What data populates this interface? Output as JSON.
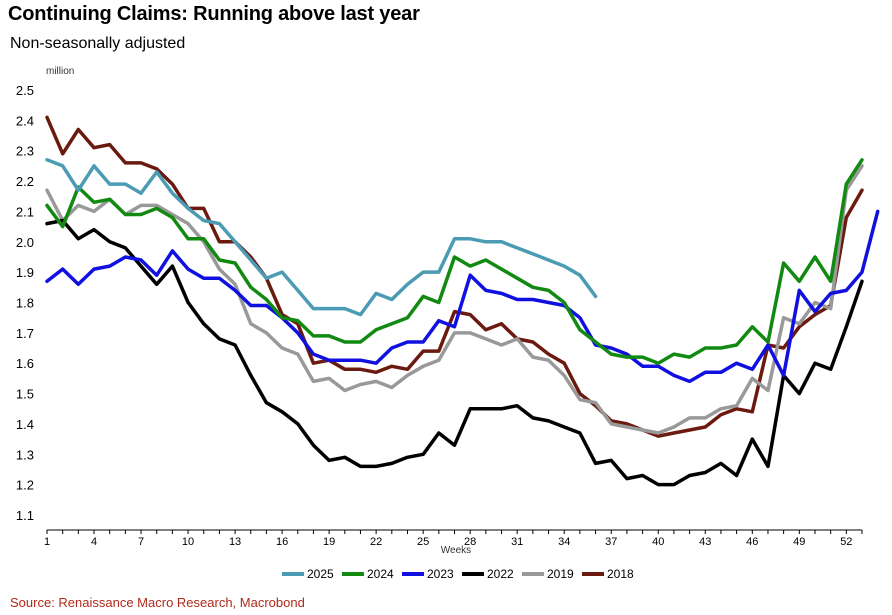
{
  "chart_data": {
    "type": "line",
    "title": "Continuing Claims: Running above last year",
    "subtitle": "Non-seasonally adjusted",
    "ylabel": "million",
    "xlabel": "Weeks",
    "ylim": [
      1.1,
      2.5
    ],
    "yticks": [
      "2.5",
      "2.4",
      "2.3",
      "2.2",
      "2.1",
      "2.0",
      "1.9",
      "1.8",
      "1.7",
      "1.6",
      "1.5",
      "1.4",
      "1.3",
      "1.2",
      "1.1"
    ],
    "ytick_values": [
      2.5,
      2.4,
      2.3,
      2.2,
      2.1,
      2.0,
      1.9,
      1.8,
      1.7,
      1.6,
      1.5,
      1.4,
      1.3,
      1.2,
      1.1
    ],
    "xlim": [
      1,
      53
    ],
    "xticks": [
      "1",
      "4",
      "7",
      "10",
      "13",
      "16",
      "19",
      "22",
      "25",
      "28",
      "31",
      "34",
      "37",
      "40",
      "43",
      "46",
      "49",
      "52"
    ],
    "xtick_values": [
      1,
      4,
      7,
      10,
      13,
      16,
      19,
      22,
      25,
      28,
      31,
      34,
      37,
      40,
      43,
      46,
      49,
      52
    ],
    "grid": false,
    "legend_position": "bottom",
    "source": "Source: Renaissance Macro Research, Macrobond",
    "series": [
      {
        "name": "2025",
        "color": "#4a9bb3",
        "start": 1,
        "values": [
          2.27,
          2.25,
          2.17,
          2.25,
          2.19,
          2.19,
          2.16,
          2.23,
          2.16,
          2.11,
          2.07,
          2.06,
          2.0,
          1.94,
          1.88,
          1.9,
          1.84,
          1.78,
          1.78,
          1.78,
          1.76,
          1.83,
          1.81,
          1.86,
          1.9,
          1.9,
          2.01,
          2.01,
          2.0,
          2.0,
          1.98,
          1.96,
          1.94,
          1.92,
          1.89,
          1.82
        ]
      },
      {
        "name": "2024",
        "color": "#128a12",
        "start": 1,
        "values": [
          2.12,
          2.05,
          2.18,
          2.13,
          2.14,
          2.09,
          2.09,
          2.11,
          2.08,
          2.01,
          2.01,
          1.94,
          1.93,
          1.85,
          1.81,
          1.75,
          1.74,
          1.69,
          1.69,
          1.67,
          1.67,
          1.71,
          1.73,
          1.75,
          1.82,
          1.8,
          1.95,
          1.92,
          1.94,
          1.91,
          1.88,
          1.85,
          1.84,
          1.8,
          1.71,
          1.67,
          1.63,
          1.62,
          1.62,
          1.6,
          1.63,
          1.62,
          1.65,
          1.65,
          1.66,
          1.72,
          1.67,
          1.93,
          1.87,
          1.95,
          1.87,
          2.19,
          2.27
        ]
      },
      {
        "name": "2023",
        "color": "#1010e0",
        "start": 1,
        "values": [
          1.87,
          1.91,
          1.86,
          1.91,
          1.92,
          1.95,
          1.94,
          1.89,
          1.97,
          1.91,
          1.88,
          1.88,
          1.84,
          1.79,
          1.79,
          1.75,
          1.7,
          1.63,
          1.61,
          1.61,
          1.61,
          1.6,
          1.65,
          1.67,
          1.67,
          1.74,
          1.72,
          1.89,
          1.84,
          1.83,
          1.81,
          1.81,
          1.8,
          1.79,
          1.75,
          1.66,
          1.65,
          1.63,
          1.59,
          1.59,
          1.56,
          1.54,
          1.57,
          1.57,
          1.6,
          1.58,
          1.66,
          1.56,
          1.84,
          1.77,
          1.83,
          1.84,
          1.9,
          2.1
        ]
      },
      {
        "name": "2022",
        "color": "#000000",
        "start": 1,
        "values": [
          2.06,
          2.07,
          2.01,
          2.04,
          2.0,
          1.98,
          1.92,
          1.86,
          1.92,
          1.8,
          1.73,
          1.68,
          1.66,
          1.56,
          1.47,
          1.44,
          1.4,
          1.33,
          1.28,
          1.29,
          1.26,
          1.26,
          1.27,
          1.29,
          1.3,
          1.37,
          1.33,
          1.45,
          1.45,
          1.45,
          1.46,
          1.42,
          1.41,
          1.39,
          1.37,
          1.27,
          1.28,
          1.22,
          1.23,
          1.2,
          1.2,
          1.23,
          1.24,
          1.27,
          1.23,
          1.35,
          1.26,
          1.56,
          1.5,
          1.6,
          1.58,
          1.72,
          1.87
        ]
      },
      {
        "name": "2019",
        "color": "#999999",
        "start": 1,
        "values": [
          2.17,
          2.07,
          2.12,
          2.1,
          2.14,
          2.09,
          2.12,
          2.12,
          2.09,
          2.06,
          2.0,
          1.91,
          1.86,
          1.73,
          1.7,
          1.65,
          1.63,
          1.54,
          1.55,
          1.51,
          1.53,
          1.54,
          1.52,
          1.56,
          1.59,
          1.61,
          1.7,
          1.7,
          1.68,
          1.66,
          1.68,
          1.62,
          1.61,
          1.56,
          1.48,
          1.47,
          1.4,
          1.39,
          1.38,
          1.37,
          1.39,
          1.42,
          1.42,
          1.45,
          1.46,
          1.55,
          1.51,
          1.75,
          1.73,
          1.8,
          1.78,
          2.17,
          2.25
        ]
      },
      {
        "name": "2018",
        "color": "#6b1a10",
        "start": 1,
        "values": [
          2.41,
          2.29,
          2.37,
          2.31,
          2.32,
          2.26,
          2.26,
          2.24,
          2.19,
          2.11,
          2.11,
          2.0,
          2.0,
          1.95,
          1.88,
          1.76,
          1.73,
          1.6,
          1.61,
          1.58,
          1.58,
          1.57,
          1.59,
          1.58,
          1.64,
          1.64,
          1.77,
          1.76,
          1.71,
          1.73,
          1.68,
          1.67,
          1.63,
          1.6,
          1.5,
          1.46,
          1.41,
          1.4,
          1.38,
          1.36,
          1.37,
          1.38,
          1.39,
          1.43,
          1.45,
          1.44,
          1.66,
          1.65,
          1.72,
          1.76,
          1.79,
          2.08,
          2.17
        ]
      }
    ]
  }
}
